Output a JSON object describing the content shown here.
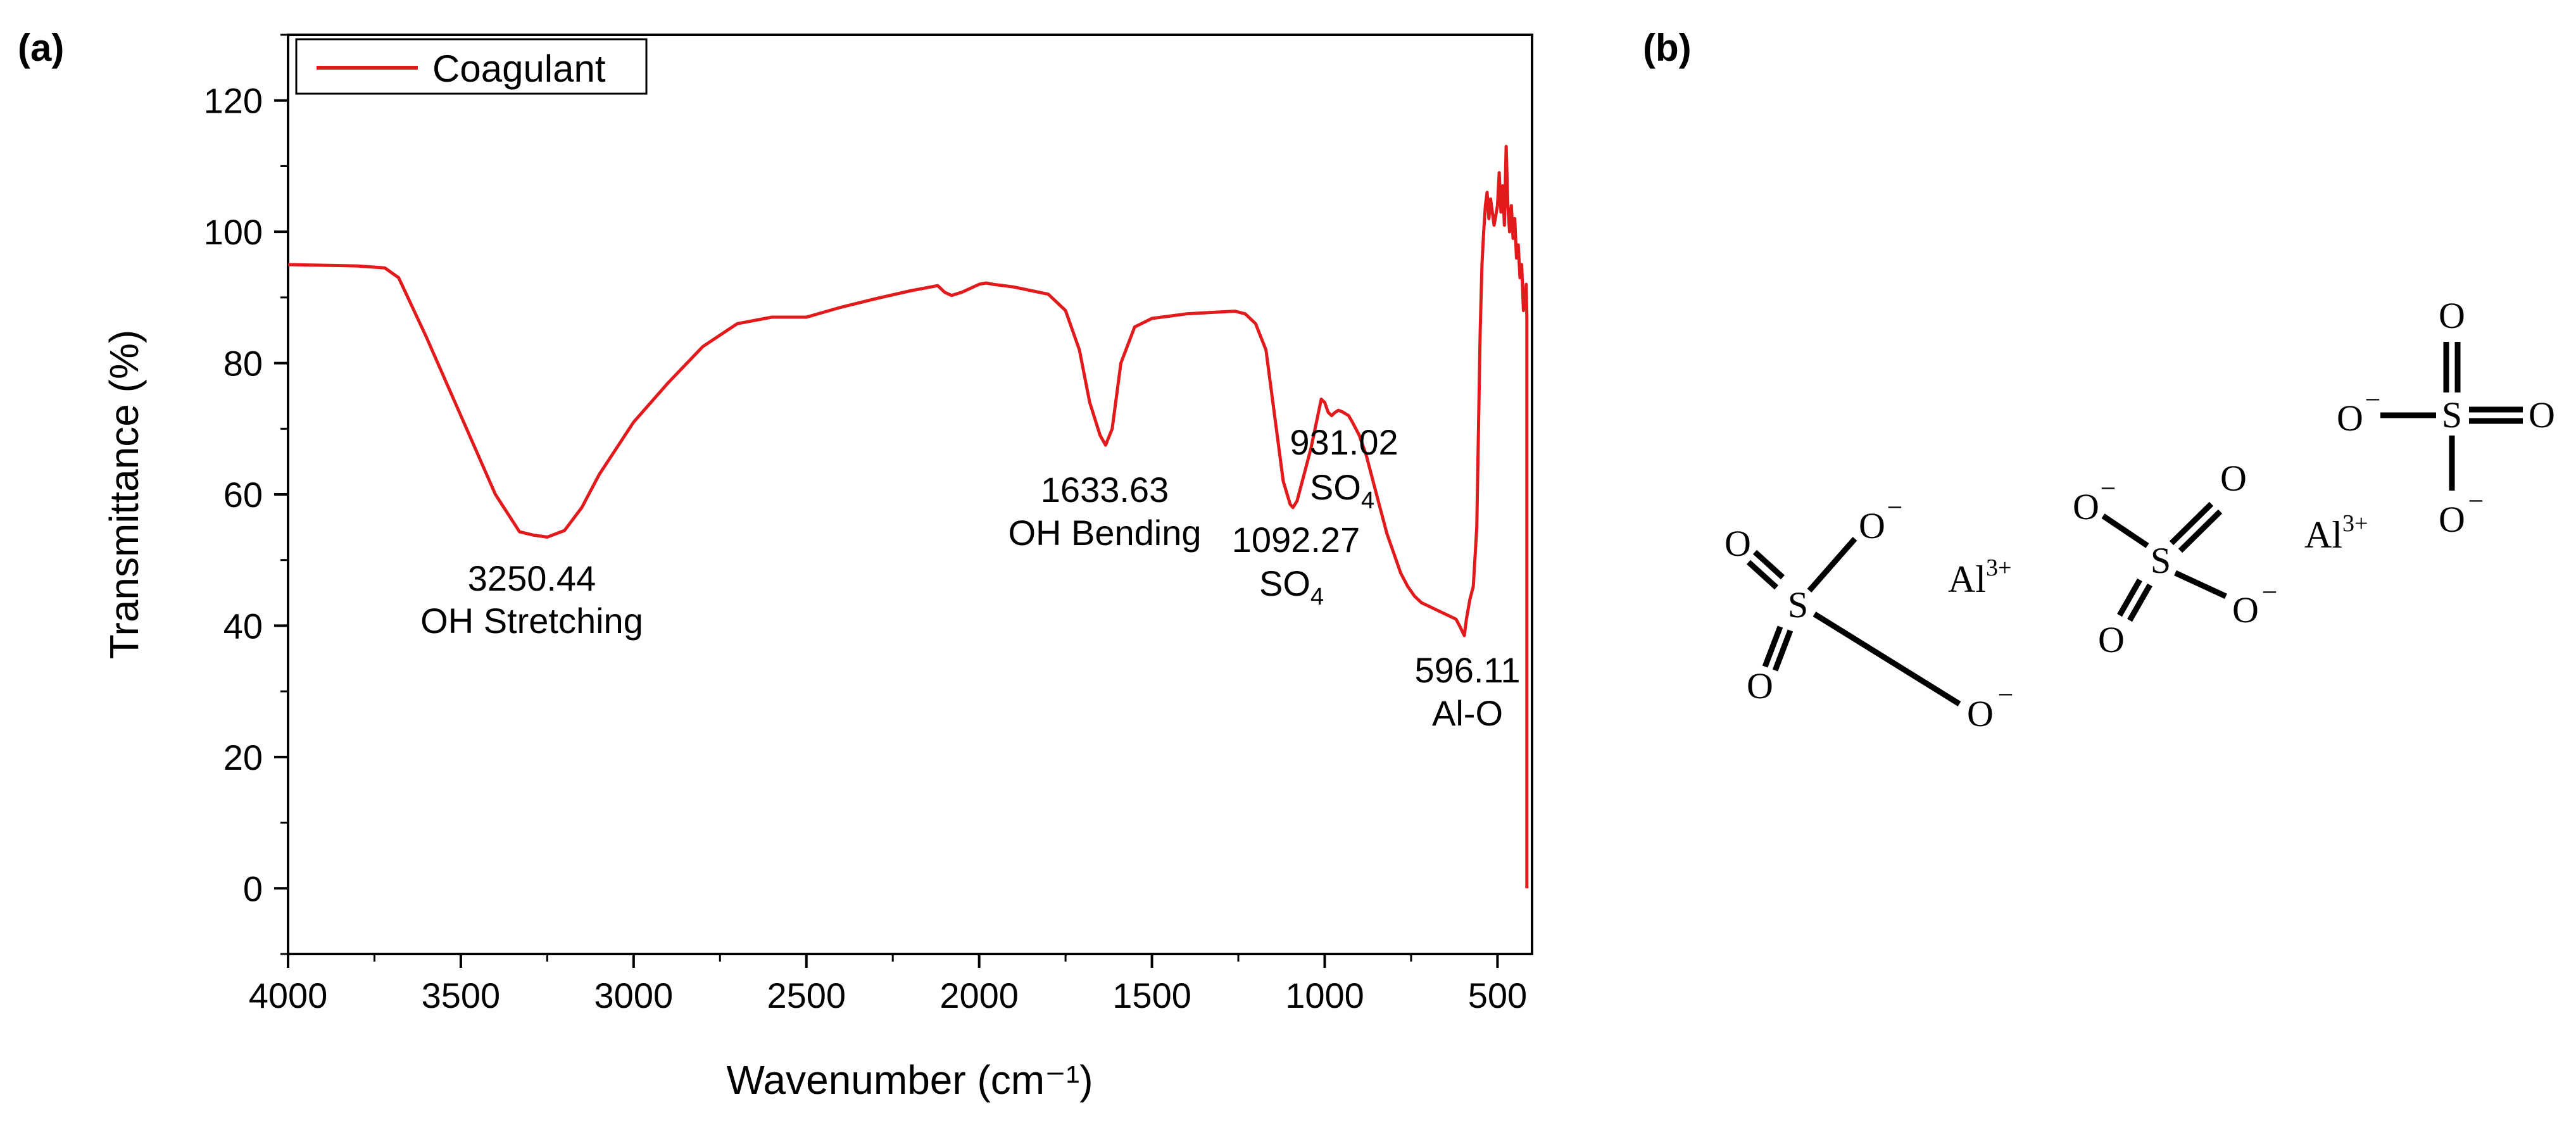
{
  "panel_a": {
    "label": "(a)"
  },
  "panel_b": {
    "label": "(b)",
    "structure": {
      "s": "S",
      "o": "O",
      "al": "Al",
      "al_charge": "3+",
      "minus": "−"
    }
  },
  "chart_data": {
    "type": "line",
    "title": "",
    "xlabel": "Wavenumber (cm⁻¹)",
    "ylabel": "Transmittance (%)",
    "xlim": [
      4000,
      400
    ],
    "ylim": [
      -10,
      130
    ],
    "x_ticks": [
      4000,
      3500,
      3000,
      2500,
      2000,
      1500,
      1000,
      500
    ],
    "y_ticks": [
      0,
      20,
      40,
      60,
      80,
      100,
      120
    ],
    "legend": {
      "position": "top-left",
      "entries": [
        "Coagulant"
      ]
    },
    "series": [
      {
        "name": "Coagulant",
        "color": "#e31a1c",
        "x": [
          4000,
          3800,
          3720,
          3680,
          3600,
          3500,
          3400,
          3330,
          3290,
          3250,
          3200,
          3150,
          3100,
          3000,
          2900,
          2800,
          2700,
          2600,
          2500,
          2400,
          2300,
          2200,
          2150,
          2120,
          2100,
          2080,
          2050,
          2000,
          1980,
          1960,
          1900,
          1800,
          1750,
          1710,
          1680,
          1650,
          1634,
          1615,
          1590,
          1550,
          1500,
          1400,
          1300,
          1260,
          1230,
          1200,
          1170,
          1140,
          1120,
          1100,
          1092,
          1080,
          1060,
          1040,
          1020,
          1010,
          1000,
          990,
          980,
          970,
          960,
          950,
          931,
          920,
          900,
          880,
          860,
          840,
          820,
          800,
          780,
          760,
          740,
          720,
          700,
          680,
          660,
          640,
          620,
          610,
          596,
          590,
          580,
          570,
          560,
          555,
          550,
          545,
          540,
          535,
          530,
          525,
          520,
          510,
          500,
          495,
          490,
          485,
          480,
          475,
          470,
          465,
          460,
          455,
          450,
          445,
          440,
          435,
          430,
          425,
          420,
          417,
          415
        ],
        "values": [
          95,
          94.8,
          94.5,
          93,
          84,
          72,
          60,
          54.3,
          53.8,
          53.5,
          54.5,
          58,
          63,
          71,
          77,
          82.5,
          86,
          87,
          87,
          88.5,
          89.8,
          91,
          91.5,
          91.8,
          90.8,
          90.3,
          90.8,
          92,
          92.2,
          92,
          91.6,
          90.5,
          88,
          82,
          74,
          69,
          67.5,
          70,
          80,
          85.5,
          86.8,
          87.5,
          87.8,
          87.9,
          87.5,
          86,
          82,
          70,
          62,
          58.5,
          58,
          59,
          63,
          67,
          72,
          74.5,
          74,
          72.5,
          72,
          72.5,
          72.8,
          72.6,
          72,
          71,
          69,
          66,
          62,
          58,
          54,
          51,
          48,
          46,
          44.5,
          43.5,
          43,
          42.5,
          42,
          41.5,
          41,
          40,
          38.5,
          41,
          44,
          46,
          55,
          70,
          85,
          95,
          100,
          104,
          106,
          102,
          105,
          101,
          104,
          109,
          103,
          107,
          101,
          113,
          104,
          100,
          104,
          99,
          102,
          96,
          98,
          93,
          95,
          88,
          90,
          92,
          87
        ]
      }
    ],
    "annotations": [
      {
        "x": 3250.44,
        "label": "3250.44",
        "sub": "OH Stretching"
      },
      {
        "x": 1633.63,
        "label": "1633.63",
        "sub": "OH Bending"
      },
      {
        "x": 1092.27,
        "label": "1092.27",
        "sub": "SO",
        "sub_index": "4"
      },
      {
        "x": 931.02,
        "label": "931.02",
        "sub": "SO",
        "sub_index": "4"
      },
      {
        "x": 596.11,
        "label": "596.11",
        "sub": "Al-O"
      }
    ]
  }
}
